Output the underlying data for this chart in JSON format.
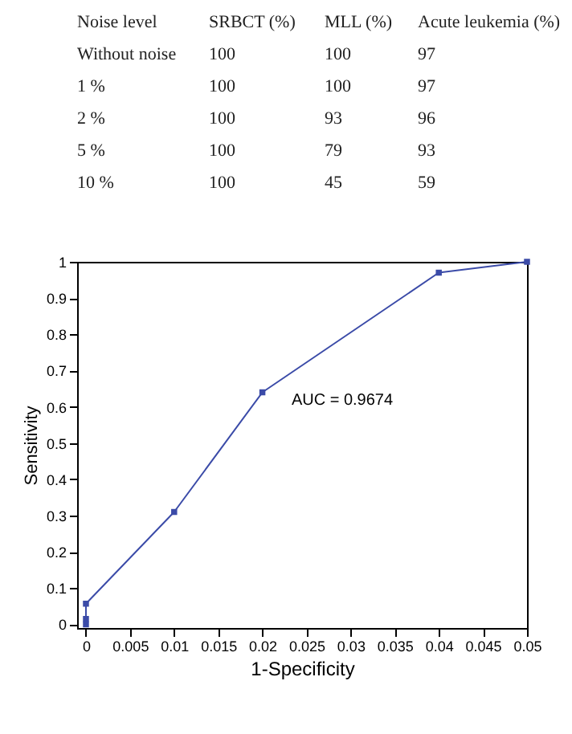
{
  "chart_data": [
    {
      "type": "other",
      "annotations": [
        "Noise level",
        "SRBCT (%)",
        "MLL (%)",
        "Acute leukemia (%)",
        "Without noise",
        "100",
        "100",
        "97",
        "1 %",
        "100",
        "100",
        "97",
        "2 %",
        "100",
        "93",
        "96",
        "5 %",
        "100",
        "79",
        "93",
        "10 %",
        "100",
        "45",
        "59"
      ]
    },
    {
      "type": "line",
      "xlabel": "1-Specificity",
      "ylabel": "Sensitivity",
      "x": [
        0,
        0,
        0,
        0.01,
        0.02,
        0.04,
        0.05
      ],
      "series": [
        {
          "color": "#3b4ba8",
          "values": [
            0,
            0.015,
            0.057,
            0.31,
            0.64,
            0.97,
            1
          ]
        }
      ],
      "xlim": [
        -0.001,
        0.05
      ],
      "xticks": [
        0,
        0.005,
        0.01,
        0.015,
        0.02,
        0.025,
        0.03,
        0.035,
        0.04,
        0.045,
        0.05
      ],
      "ylim": [
        -0.01,
        1
      ],
      "yticks": [
        0,
        0.1,
        0.2,
        0.3,
        0.4,
        0.5,
        0.6,
        0.7,
        0.8,
        0.9,
        1
      ],
      "marker": "square",
      "line_style": "solid",
      "grid": false,
      "annotations": [
        "AUC = 0.9674"
      ]
    }
  ]
}
